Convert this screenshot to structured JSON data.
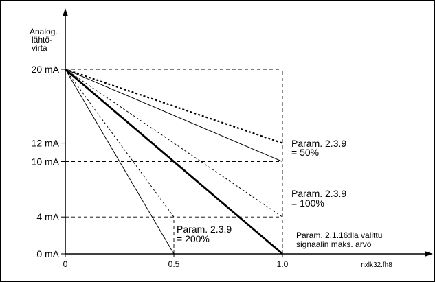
{
  "chart_data": {
    "type": "line",
    "title": "",
    "ylabel": [
      "Analog.",
      "lähtö-",
      "virta"
    ],
    "xlabel": "",
    "x_ticks": [
      {
        "value": 0,
        "label": "0"
      },
      {
        "value": 0.5,
        "label": "0.5"
      },
      {
        "value": 1.0,
        "label": "1.0"
      }
    ],
    "y_ticks": [
      {
        "value": 0,
        "label": "0 mA"
      },
      {
        "value": 4,
        "label": "4 mA"
      },
      {
        "value": 10,
        "label": "10 mA"
      },
      {
        "value": 12,
        "label": "12 mA"
      },
      {
        "value": 20,
        "label": "20 mA"
      }
    ],
    "xlim": [
      0,
      1.0
    ],
    "ylim": [
      0,
      20
    ],
    "grid": "dashed guide lines",
    "series": [
      {
        "style": "thin-solid",
        "x": [
          0,
          0.5
        ],
        "y": [
          20,
          0
        ]
      },
      {
        "style": "thin-dashed",
        "x": [
          0,
          0.5
        ],
        "y": [
          20,
          4
        ]
      },
      {
        "style": "thick-solid",
        "x": [
          0,
          1.0
        ],
        "y": [
          20,
          0
        ]
      },
      {
        "style": "thin-dashed",
        "x": [
          0,
          1.0
        ],
        "y": [
          20,
          4
        ]
      },
      {
        "style": "thin-solid",
        "x": [
          0,
          1.0
        ],
        "y": [
          20,
          10
        ]
      },
      {
        "style": "thick-dotted",
        "x": [
          0,
          1.0
        ],
        "y": [
          20,
          12
        ]
      }
    ],
    "guides": [
      {
        "orient": "h",
        "y": 20,
        "x": [
          0,
          1.0
        ]
      },
      {
        "orient": "h",
        "y": 12,
        "x": [
          0,
          1.0
        ]
      },
      {
        "orient": "h",
        "y": 10,
        "x": [
          0,
          1.0
        ]
      },
      {
        "orient": "h",
        "y": 4,
        "x": [
          0,
          1.0
        ]
      },
      {
        "orient": "v",
        "x": 0.5,
        "y": [
          0,
          4
        ]
      },
      {
        "orient": "v",
        "x": 1.0,
        "y": [
          0,
          20
        ]
      }
    ],
    "annotations": [
      {
        "id": "ann-50",
        "lines": [
          "Param. 2.3.9",
          "= 50%"
        ]
      },
      {
        "id": "ann-100",
        "lines": [
          "Param. 2.3.9",
          "= 100%"
        ]
      },
      {
        "id": "ann-200",
        "lines": [
          "Param. 2.3.9",
          "= 200%"
        ]
      },
      {
        "id": "ann-max",
        "lines": [
          "Param. 2.1.16:lla  valittu",
          "signaalin maks. arvo"
        ]
      }
    ],
    "file_label": "nxlk32.fh8"
  }
}
